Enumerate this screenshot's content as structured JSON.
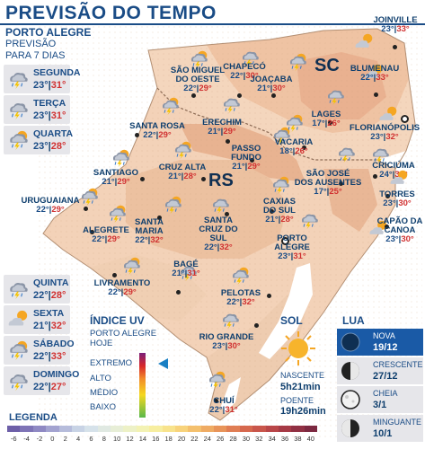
{
  "title": "PREVISÃO DO TEMPO",
  "panel": {
    "location": "PORTO ALEGRE",
    "sub1": "PREVISÃO",
    "sub2": "PARA 7 DIAS"
  },
  "days": [
    {
      "name": "SEGUNDA",
      "min": "23°",
      "max": "31°",
      "icon": "storm-icon"
    },
    {
      "name": "TERÇA",
      "min": "23°",
      "max": "31°",
      "icon": "storm-icon"
    },
    {
      "name": "QUARTA",
      "min": "23°",
      "max": "28°",
      "icon": "storm-sun-icon"
    },
    {
      "name": "QUINTA",
      "min": "22°",
      "max": "28°",
      "icon": "storm-icon"
    },
    {
      "name": "SEXTA",
      "min": "21°",
      "max": "32°",
      "icon": "sun-cloud-icon"
    },
    {
      "name": "SÁBADO",
      "min": "22°",
      "max": "33°",
      "icon": "storm-sun-icon"
    },
    {
      "name": "DOMINGO",
      "min": "22°",
      "max": "27°",
      "icon": "storm-icon"
    }
  ],
  "states": {
    "sc": "SC",
    "rs": "RS"
  },
  "cities": [
    {
      "name": "SÃO MIGUEL\nDO OESTE",
      "min": "22°",
      "max": "29°"
    },
    {
      "name": "CHAPECÓ",
      "min": "22°",
      "max": "30°"
    },
    {
      "name": "JOAÇABA",
      "min": "21°",
      "max": "30°"
    },
    {
      "name": "JOINVILLE",
      "min": "23°",
      "max": "33°"
    },
    {
      "name": "BLUMENAU",
      "min": "22°",
      "max": "33°"
    },
    {
      "name": "LAGES",
      "min": "17°",
      "max": "26°"
    },
    {
      "name": "FLORIANÓPOLIS",
      "min": "23°",
      "max": "32°"
    },
    {
      "name": "SANTA ROSA",
      "min": "22°",
      "max": "29°"
    },
    {
      "name": "ERECHIM",
      "min": "21°",
      "max": "29°"
    },
    {
      "name": "PASSO\nFUNDO",
      "min": "21°",
      "max": "29°"
    },
    {
      "name": "VACARIA",
      "min": "18°",
      "max": "26°"
    },
    {
      "name": "CRICIÚMA",
      "min": "24°",
      "max": "33°"
    },
    {
      "name": "SANTIAGO",
      "min": "21°",
      "max": "29°"
    },
    {
      "name": "CRUZ ALTA",
      "min": "21°",
      "max": "28°"
    },
    {
      "name": "SÃO JOSÉ\nDOS AUSENTES",
      "min": "17°",
      "max": "25°"
    },
    {
      "name": "TORRES",
      "min": "23°",
      "max": "30°"
    },
    {
      "name": "URUGUAIANA",
      "min": "22°",
      "max": "29°"
    },
    {
      "name": "CAXIAS\nDO SUL",
      "min": "21°",
      "max": "28°"
    },
    {
      "name": "CAPÃO DA\nCANOA",
      "min": "23°",
      "max": "30°"
    },
    {
      "name": "ALEGRETE",
      "min": "22°",
      "max": "29°"
    },
    {
      "name": "SANTA\nMARIA",
      "min": "22°",
      "max": "32°"
    },
    {
      "name": "SANTA\nCRUZ DO\nSUL",
      "min": "22°",
      "max": "32°"
    },
    {
      "name": "PORTO\nALEGRE",
      "min": "23°",
      "max": "31°"
    },
    {
      "name": "LIVRAMENTO",
      "min": "22°",
      "max": "29°"
    },
    {
      "name": "BAGÉ",
      "min": "21°",
      "max": "31°"
    },
    {
      "name": "PELOTAS",
      "min": "22°",
      "max": "32°"
    },
    {
      "name": "RIO GRANDE",
      "min": "23°",
      "max": "30°"
    },
    {
      "name": "CHUÍ",
      "min": "22°",
      "max": "31°"
    }
  ],
  "uv": {
    "title": "ÍNDICE UV",
    "sub": "PORTO ALEGRE\nHOJE",
    "levels": [
      "EXTREMO",
      "ALTO",
      "MÉDIO",
      "BAIXO"
    ]
  },
  "sol": {
    "title": "SOL",
    "sunrise_label": "NASCENTE",
    "sunrise": "5h21min",
    "sunset_label": "POENTE",
    "sunset": "19h26min"
  },
  "lua": {
    "title": "LUA",
    "phases": [
      {
        "name": "NOVA",
        "date": "19/12"
      },
      {
        "name": "CRESCENTE",
        "date": "27/12"
      },
      {
        "name": "CHEIA",
        "date": "3/1"
      },
      {
        "name": "MINGUANTE",
        "date": "10/1"
      }
    ]
  },
  "legend": {
    "title": "LEGENDA",
    "ticks": [
      "-6",
      "-4",
      "-2",
      "0",
      "2",
      "4",
      "6",
      "8",
      "10",
      "12",
      "14",
      "16",
      "18",
      "20",
      "22",
      "24",
      "26",
      "28",
      "30",
      "32",
      "34",
      "36",
      "38",
      "40"
    ],
    "colors": [
      "#6d5fa8",
      "#7e74b6",
      "#8f89c3",
      "#a3a3d0",
      "#b6bcdb",
      "#c8d3e5",
      "#d6e2ea",
      "#e0e9e2",
      "#e7eed6",
      "#edf1c6",
      "#f3f2b3",
      "#f7ee9f",
      "#f8e38c",
      "#f8d37b",
      "#f4c06d",
      "#efab63",
      "#e89459",
      "#e07d53",
      "#d6684e",
      "#c9564b",
      "#b94648",
      "#a63a45",
      "#913043",
      "#7c2840"
    ]
  }
}
